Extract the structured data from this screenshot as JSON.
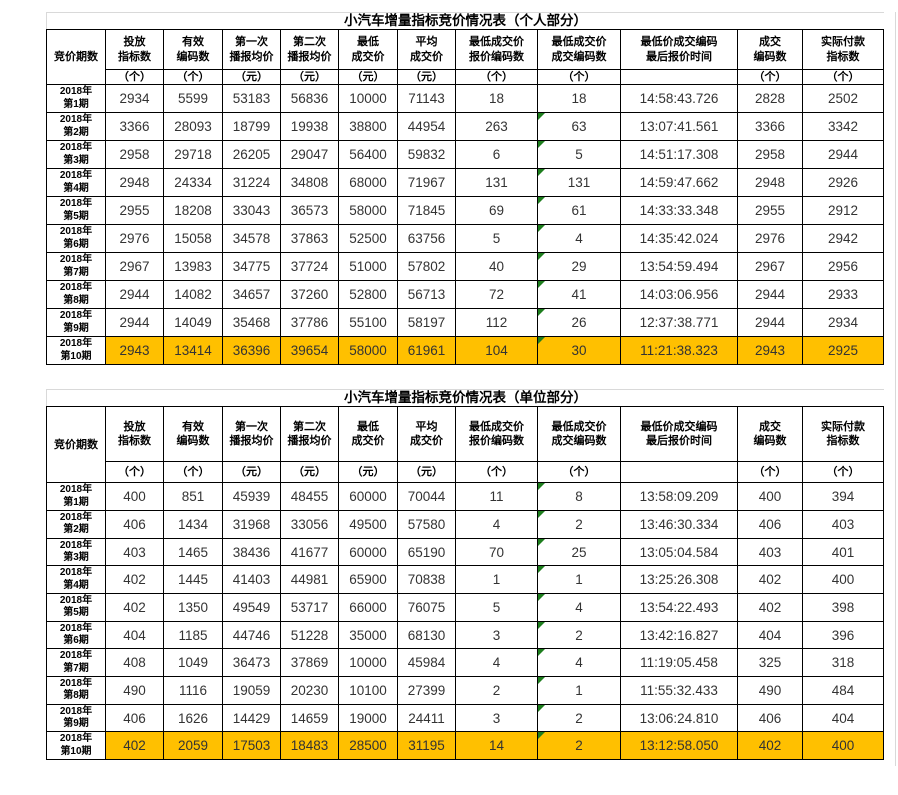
{
  "colors": {
    "highlight": "#FFC000",
    "table_border": "#000000",
    "error_flag_green": "#1E7E1E",
    "gridline_gray": "#D9D9D9",
    "value_text": "#333333"
  },
  "flag_column_index": 7,
  "header": {
    "col_period": "竞价期数",
    "cols": [
      {
        "label": "投放\n指标数",
        "unit": "（个）"
      },
      {
        "label": "有效\n编码数",
        "unit": "（个）"
      },
      {
        "label": "第一次\n播报均价",
        "unit": "（元）"
      },
      {
        "label": "第二次\n播报均价",
        "unit": "（元）"
      },
      {
        "label": "最低\n成交价",
        "unit": "（元）"
      },
      {
        "label": "平均\n成交价",
        "unit": "（元）"
      },
      {
        "label": "最低成交价\n报价编码数",
        "unit": "（个）"
      },
      {
        "label": "最低成交价\n成交编码数",
        "unit": "（个）"
      },
      {
        "label": "最低价成交编码\n最后报价时间",
        "unit": ""
      },
      {
        "label": "成交\n编码数",
        "unit": "（个）"
      },
      {
        "label": "实际付款\n指标数",
        "unit": "（个）"
      }
    ]
  },
  "tables": [
    {
      "id": "personal",
      "title": "小汽车增量指标竞价情况表（个人部分）",
      "rows": [
        {
          "period": "2018年\n第1期",
          "values": [
            "2934",
            "5599",
            "53183",
            "56836",
            "10000",
            "71143",
            "18",
            "18",
            "14:58:43.726",
            "2828",
            "2502"
          ],
          "flag": false,
          "highlight": false
        },
        {
          "period": "2018年\n第2期",
          "values": [
            "3366",
            "28093",
            "18799",
            "19938",
            "38800",
            "44954",
            "263",
            "63",
            "13:07:41.561",
            "3366",
            "3342"
          ],
          "flag": true,
          "highlight": false
        },
        {
          "period": "2018年\n第3期",
          "values": [
            "2958",
            "29718",
            "26205",
            "29047",
            "56400",
            "59832",
            "6",
            "5",
            "14:51:17.308",
            "2958",
            "2944"
          ],
          "flag": true,
          "highlight": false
        },
        {
          "period": "2018年\n第4期",
          "values": [
            "2948",
            "24334",
            "31224",
            "34808",
            "68000",
            "71967",
            "131",
            "131",
            "14:59:47.662",
            "2948",
            "2926"
          ],
          "flag": true,
          "highlight": false
        },
        {
          "period": "2018年\n第5期",
          "values": [
            "2955",
            "18208",
            "33043",
            "36573",
            "58000",
            "71845",
            "69",
            "61",
            "14:33:33.348",
            "2955",
            "2912"
          ],
          "flag": true,
          "highlight": false
        },
        {
          "period": "2018年\n第6期",
          "values": [
            "2976",
            "15058",
            "34578",
            "37863",
            "52500",
            "63756",
            "5",
            "4",
            "14:35:42.024",
            "2976",
            "2942"
          ],
          "flag": true,
          "highlight": false
        },
        {
          "period": "2018年\n第7期",
          "values": [
            "2967",
            "13983",
            "34775",
            "37724",
            "51000",
            "57802",
            "40",
            "29",
            "13:54:59.494",
            "2967",
            "2956"
          ],
          "flag": true,
          "highlight": false
        },
        {
          "period": "2018年\n第8期",
          "values": [
            "2944",
            "14082",
            "34657",
            "37260",
            "52800",
            "56713",
            "72",
            "41",
            "14:03:06.956",
            "2944",
            "2933"
          ],
          "flag": true,
          "highlight": false
        },
        {
          "period": "2018年\n第9期",
          "values": [
            "2944",
            "14049",
            "35468",
            "37786",
            "55100",
            "58197",
            "112",
            "26",
            "12:37:38.771",
            "2944",
            "2934"
          ],
          "flag": true,
          "highlight": false
        },
        {
          "period": "2018年\n第10期",
          "values": [
            "2943",
            "13414",
            "36396",
            "39654",
            "58000",
            "61961",
            "104",
            "30",
            "11:21:38.323",
            "2943",
            "2925"
          ],
          "flag": true,
          "highlight": true
        }
      ]
    },
    {
      "id": "unit",
      "title": "小汽车增量指标竞价情况表（单位部分）",
      "rows": [
        {
          "period": "2018年\n第1期",
          "values": [
            "400",
            "851",
            "45939",
            "48455",
            "60000",
            "70044",
            "11",
            "8",
            "13:58:09.209",
            "400",
            "394"
          ],
          "flag": true,
          "highlight": false
        },
        {
          "period": "2018年\n第2期",
          "values": [
            "406",
            "1434",
            "31968",
            "33056",
            "49500",
            "57580",
            "4",
            "2",
            "13:46:30.334",
            "406",
            "403"
          ],
          "flag": true,
          "highlight": false
        },
        {
          "period": "2018年\n第3期",
          "values": [
            "403",
            "1465",
            "38436",
            "41677",
            "60000",
            "65190",
            "70",
            "25",
            "13:05:04.584",
            "403",
            "401"
          ],
          "flag": true,
          "highlight": false
        },
        {
          "period": "2018年\n第4期",
          "values": [
            "402",
            "1445",
            "41403",
            "44981",
            "65900",
            "70838",
            "1",
            "1",
            "13:25:26.308",
            "402",
            "400"
          ],
          "flag": true,
          "highlight": false
        },
        {
          "period": "2018年\n第5期",
          "values": [
            "402",
            "1350",
            "49549",
            "53717",
            "66000",
            "76075",
            "5",
            "4",
            "13:54:22.493",
            "402",
            "398"
          ],
          "flag": true,
          "highlight": false
        },
        {
          "period": "2018年\n第6期",
          "values": [
            "404",
            "1185",
            "44746",
            "51228",
            "35000",
            "68130",
            "3",
            "2",
            "13:42:16.827",
            "404",
            "396"
          ],
          "flag": true,
          "highlight": false
        },
        {
          "period": "2018年\n第7期",
          "values": [
            "408",
            "1049",
            "36473",
            "37869",
            "10000",
            "45984",
            "4",
            "4",
            "11:19:05.458",
            "325",
            "318"
          ],
          "flag": true,
          "highlight": false
        },
        {
          "period": "2018年\n第8期",
          "values": [
            "490",
            "1116",
            "19059",
            "20230",
            "10100",
            "27399",
            "2",
            "1",
            "11:55:32.433",
            "490",
            "484"
          ],
          "flag": true,
          "highlight": false
        },
        {
          "period": "2018年\n第9期",
          "values": [
            "406",
            "1626",
            "14429",
            "14659",
            "19000",
            "24411",
            "3",
            "2",
            "13:06:24.810",
            "406",
            "404"
          ],
          "flag": true,
          "highlight": false
        },
        {
          "period": "2018年\n第10期",
          "values": [
            "402",
            "2059",
            "17503",
            "18483",
            "28500",
            "31195",
            "14",
            "2",
            "13:12:58.050",
            "402",
            "400"
          ],
          "flag": true,
          "highlight": true
        }
      ]
    }
  ]
}
